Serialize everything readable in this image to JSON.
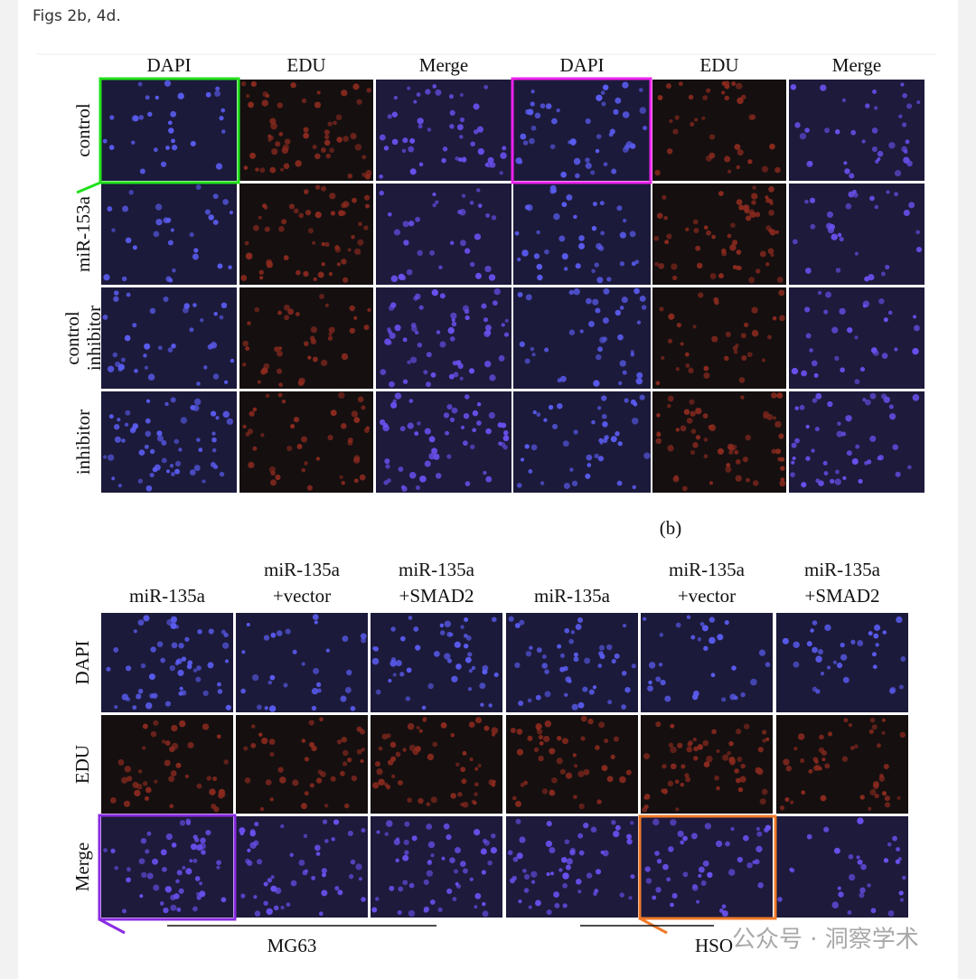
{
  "header": {
    "title": "Figs 2b, 4d."
  },
  "figure_b": {
    "column_headers": [
      "DAPI",
      "EDU",
      "Merge",
      "DAPI",
      "EDU",
      "Merge"
    ],
    "row_labels": [
      [
        "control"
      ],
      [
        "miR-153a"
      ],
      [
        "control",
        "inhibitor"
      ],
      [
        "inhibitor"
      ]
    ],
    "caption": "(b)"
  },
  "figure_d": {
    "column_headers": [
      [
        "miR-135a"
      ],
      [
        "miR-135a",
        "+vector"
      ],
      [
        "miR-135a",
        "+SMAD2"
      ],
      [
        "miR-135a"
      ],
      [
        "miR-135a",
        "+vector"
      ],
      [
        "miR-135a",
        "+SMAD2"
      ]
    ],
    "row_labels": [
      "DAPI",
      "EDU",
      "Merge"
    ],
    "groups": [
      "MG63",
      "HSO"
    ]
  },
  "watermark": "公众号 · 洞察学术"
}
